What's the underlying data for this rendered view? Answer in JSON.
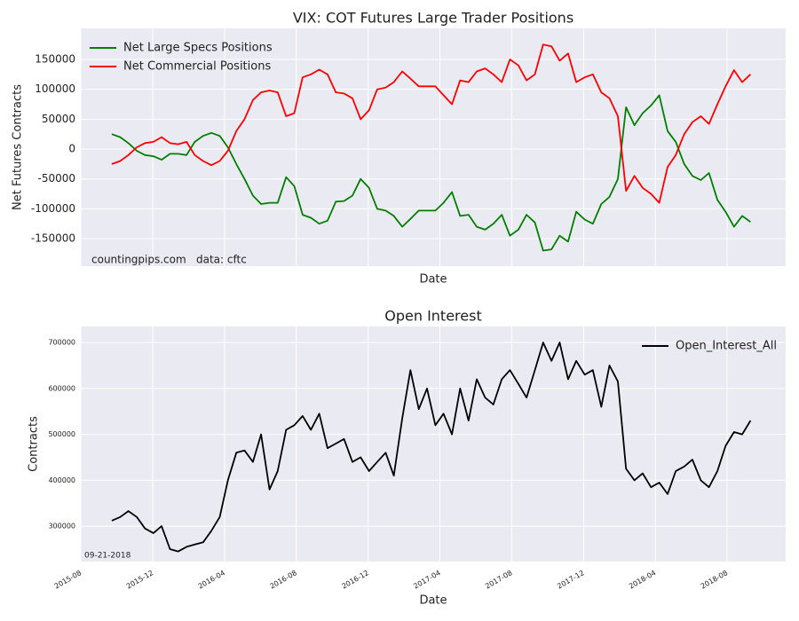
{
  "chart_data": [
    {
      "type": "line",
      "title": "VIX: COT Futures Large Trader Positions",
      "ylabel": "Net Futures Contracts",
      "xlabel": "Date",
      "annotations": [
        "countingpips.com",
        "data: cftc"
      ],
      "legend": "upper left",
      "grid": true,
      "xlim": [
        2015.583,
        2018.855
      ],
      "ylim": [
        -196000,
        202000
      ],
      "yticks": [
        -150000,
        -100000,
        -50000,
        0,
        50000,
        100000,
        150000
      ],
      "x": [
        2015.727,
        2015.766,
        2015.804,
        2015.843,
        2015.881,
        2015.92,
        2015.958,
        2015.997,
        2016.035,
        2016.074,
        2016.112,
        2016.151,
        2016.189,
        2016.228,
        2016.266,
        2016.305,
        2016.343,
        2016.382,
        2016.42,
        2016.459,
        2016.497,
        2016.536,
        2016.574,
        2016.613,
        2016.651,
        2016.69,
        2016.728,
        2016.767,
        2016.805,
        2016.844,
        2016.882,
        2016.921,
        2016.959,
        2016.998,
        2017.036,
        2017.075,
        2017.113,
        2017.152,
        2017.19,
        2017.229,
        2017.267,
        2017.306,
        2017.344,
        2017.383,
        2017.421,
        2017.46,
        2017.498,
        2017.537,
        2017.575,
        2017.614,
        2017.652,
        2017.691,
        2017.729,
        2017.768,
        2017.806,
        2017.845,
        2017.883,
        2017.922,
        2017.96,
        2017.999,
        2018.037,
        2018.076,
        2018.114,
        2018.153,
        2018.191,
        2018.23,
        2018.268,
        2018.307,
        2018.345,
        2018.384,
        2018.422,
        2018.461,
        2018.499,
        2018.538,
        2018.576,
        2018.615,
        2018.653,
        2018.692
      ],
      "series": [
        {
          "name": "Net Large Specs Positions",
          "color": "#008000",
          "values": [
            25000,
            20000,
            10000,
            -3000,
            -10000,
            -12000,
            -18000,
            -8000,
            -8000,
            -10000,
            12000,
            22000,
            27000,
            22000,
            3000,
            -25000,
            -50000,
            -78000,
            -92000,
            -90000,
            -90000,
            -47000,
            -62000,
            -110000,
            -115000,
            -125000,
            -120000,
            -88000,
            -87000,
            -78000,
            -50000,
            -65000,
            -100000,
            -103000,
            -112000,
            -130000,
            -117000,
            -103000,
            -103000,
            -103000,
            -90000,
            -72000,
            -112000,
            -110000,
            -130000,
            -135000,
            -125000,
            -110000,
            -145000,
            -135000,
            -110000,
            -123000,
            -170000,
            -168000,
            -145000,
            -155000,
            -105000,
            -118000,
            -125000,
            -92000,
            -80000,
            -50000,
            70000,
            40000,
            60000,
            73000,
            90000,
            30000,
            12000,
            -25000,
            -45000,
            -52000,
            -40000,
            -85000,
            -105000,
            -130000,
            -112000,
            -122000
          ]
        },
        {
          "name": "Net Commercial Positions",
          "color": "#ff0000",
          "values": [
            -25000,
            -20000,
            -10000,
            3000,
            10000,
            12000,
            20000,
            10000,
            8000,
            12000,
            -10000,
            -20000,
            -27000,
            -20000,
            -3000,
            30000,
            50000,
            82000,
            95000,
            98000,
            95000,
            55000,
            60000,
            120000,
            125000,
            133000,
            125000,
            95000,
            93000,
            85000,
            50000,
            65000,
            100000,
            103000,
            112000,
            130000,
            118000,
            105000,
            105000,
            105000,
            90000,
            75000,
            115000,
            112000,
            130000,
            135000,
            125000,
            112000,
            150000,
            140000,
            115000,
            125000,
            175000,
            172000,
            148000,
            160000,
            112000,
            120000,
            125000,
            95000,
            85000,
            55000,
            -70000,
            -45000,
            -65000,
            -75000,
            -90000,
            -30000,
            -10000,
            25000,
            45000,
            55000,
            42000,
            75000,
            105000,
            132000,
            112000,
            125000
          ]
        }
      ]
    },
    {
      "type": "line",
      "title": "Open Interest",
      "ylabel": "Contracts",
      "xlabel": "Date",
      "annotations": [
        "09-21-2018"
      ],
      "legend": "upper right",
      "grid": true,
      "xlim": [
        2015.583,
        2018.855
      ],
      "ylim": [
        223000,
        735000
      ],
      "yticks": [
        300000,
        400000,
        500000,
        600000,
        700000
      ],
      "xticks": [
        {
          "value": 2015.583,
          "label": "2015-08"
        },
        {
          "value": 2015.917,
          "label": "2015-12"
        },
        {
          "value": 2016.25,
          "label": "2016-04"
        },
        {
          "value": 2016.583,
          "label": "2016-08"
        },
        {
          "value": 2016.917,
          "label": "2016-12"
        },
        {
          "value": 2017.25,
          "label": "2017-04"
        },
        {
          "value": 2017.583,
          "label": "2017-08"
        },
        {
          "value": 2017.917,
          "label": "2017-12"
        },
        {
          "value": 2018.25,
          "label": "2018-04"
        },
        {
          "value": 2018.583,
          "label": "2018-08"
        }
      ],
      "x": [
        2015.727,
        2015.766,
        2015.804,
        2015.843,
        2015.881,
        2015.92,
        2015.958,
        2015.997,
        2016.035,
        2016.074,
        2016.112,
        2016.151,
        2016.189,
        2016.228,
        2016.266,
        2016.305,
        2016.343,
        2016.382,
        2016.42,
        2016.459,
        2016.497,
        2016.536,
        2016.574,
        2016.613,
        2016.651,
        2016.69,
        2016.728,
        2016.767,
        2016.805,
        2016.844,
        2016.882,
        2016.921,
        2016.959,
        2016.998,
        2017.036,
        2017.075,
        2017.113,
        2017.152,
        2017.19,
        2017.229,
        2017.267,
        2017.306,
        2017.344,
        2017.383,
        2017.421,
        2017.46,
        2017.498,
        2017.537,
        2017.575,
        2017.614,
        2017.652,
        2017.691,
        2017.729,
        2017.768,
        2017.806,
        2017.845,
        2017.883,
        2017.922,
        2017.96,
        2017.999,
        2018.037,
        2018.076,
        2018.114,
        2018.153,
        2018.191,
        2018.23,
        2018.268,
        2018.307,
        2018.345,
        2018.384,
        2018.422,
        2018.461,
        2018.499,
        2018.538,
        2018.576,
        2018.615,
        2018.653,
        2018.692
      ],
      "series": [
        {
          "name": "Open_Interest_All",
          "color": "#000000",
          "values": [
            312000,
            320000,
            333000,
            320000,
            295000,
            285000,
            300000,
            250000,
            245000,
            255000,
            260000,
            265000,
            290000,
            320000,
            400000,
            460000,
            465000,
            440000,
            500000,
            380000,
            420000,
            510000,
            520000,
            540000,
            510000,
            545000,
            470000,
            480000,
            490000,
            440000,
            450000,
            420000,
            440000,
            460000,
            410000,
            535000,
            640000,
            555000,
            600000,
            520000,
            545000,
            500000,
            600000,
            530000,
            620000,
            580000,
            565000,
            620000,
            640000,
            610000,
            580000,
            640000,
            700000,
            660000,
            700000,
            620000,
            660000,
            630000,
            640000,
            560000,
            650000,
            615000,
            425000,
            400000,
            415000,
            385000,
            395000,
            370000,
            420000,
            430000,
            445000,
            400000,
            385000,
            420000,
            475000,
            505000,
            500000,
            530000
          ]
        }
      ]
    }
  ]
}
